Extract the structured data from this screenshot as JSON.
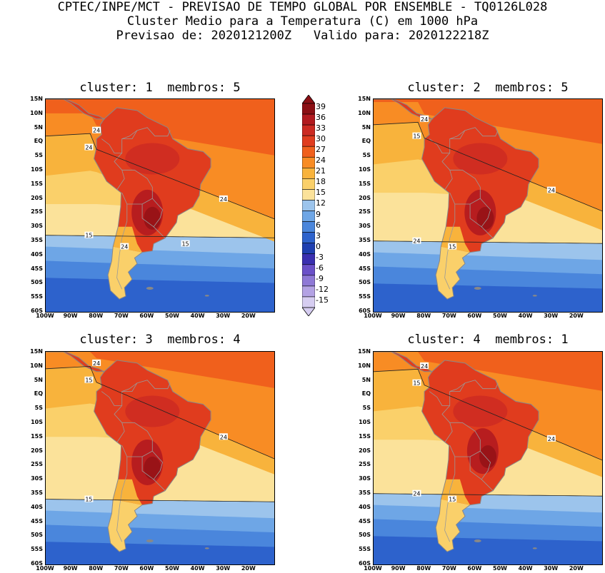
{
  "header": {
    "line1": "CPTEC/INPE/MCT - PREVISAO DE TEMPO GLOBAL POR ENSEMBLE - TQ0126L028",
    "line2": "Cluster Medio para a Temperatura (C) em 1000 hPa",
    "line3": "Previsao de: 2020121200Z   Valido para: 2020122218Z"
  },
  "panels": [
    {
      "title": "cluster: 1  membros: 5",
      "contour_labels": [
        "24",
        "24",
        "24",
        "15",
        "24",
        "15"
      ]
    },
    {
      "title": "cluster: 2  membros: 5",
      "contour_labels": [
        "24",
        "15",
        "24",
        "24",
        "15"
      ]
    },
    {
      "title": "cluster: 3  membros: 4",
      "contour_labels": [
        "24",
        "15",
        "24",
        "15"
      ]
    },
    {
      "title": "cluster: 4  membros: 1",
      "contour_labels": [
        "24",
        "15",
        "24",
        "24",
        "15"
      ]
    }
  ],
  "lat_labels": [
    "15N",
    "10N",
    "5N",
    "EQ",
    "5S",
    "10S",
    "15S",
    "20S",
    "25S",
    "30S",
    "35S",
    "40S",
    "45S",
    "50S",
    "55S",
    "60S"
  ],
  "lon_labels": [
    "100W",
    "90W",
    "80W",
    "70W",
    "60W",
    "50W",
    "40W",
    "30W",
    "20W"
  ],
  "colorbar": {
    "labels": [
      "39",
      "36",
      "33",
      "30",
      "27",
      "24",
      "21",
      "18",
      "15",
      "12",
      "9",
      "6",
      "3",
      "0",
      "-3",
      "-6",
      "-9",
      "-12",
      "-15"
    ],
    "colors": [
      "#8b0f14",
      "#b21a1f",
      "#cc2a22",
      "#e03c1e",
      "#f0601c",
      "#f88c24",
      "#f8b33c",
      "#fad06a",
      "#fbe29a",
      "#9cc4ec",
      "#6ea6e6",
      "#4a86dc",
      "#2d62cc",
      "#1e3fb0",
      "#3a2fb0",
      "#6a50c8",
      "#8e78d6",
      "#b3a2e4",
      "#d6cdf1"
    ]
  }
}
